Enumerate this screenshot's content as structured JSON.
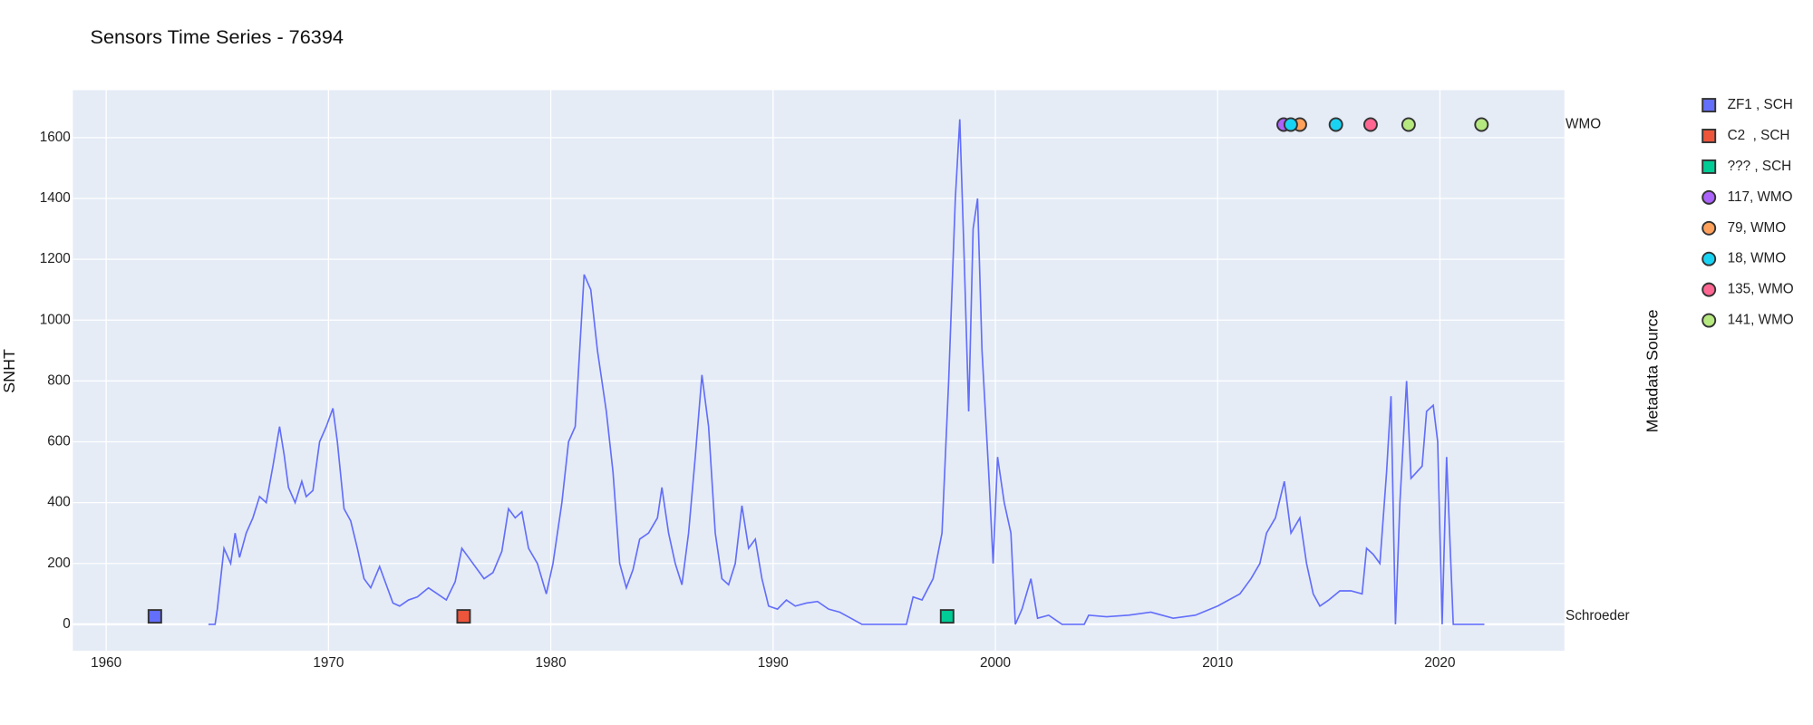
{
  "chart_data": {
    "type": "line",
    "title": "Sensors Time Series - 76394",
    "ylabel": "SNHT",
    "y2label": "Metadata Source",
    "xlim": [
      1958.5,
      2025.6
    ],
    "xticks": [
      1960,
      1970,
      1980,
      1990,
      2000,
      2010,
      2020
    ],
    "ylim": [
      -87,
      1756
    ],
    "yticks": [
      0,
      200,
      400,
      600,
      800,
      1000,
      1200,
      1400,
      1600
    ],
    "y2lim": [
      -0.07,
      1.07
    ],
    "y2categories": [
      "Schroeder",
      "WMO"
    ],
    "grid": true,
    "background": "#e5ecf6",
    "line": {
      "color": "#636efa",
      "x": [
        1964.6,
        1964.9,
        1965.0,
        1965.3,
        1965.6,
        1965.8,
        1966.0,
        1966.3,
        1966.6,
        1966.9,
        1967.2,
        1967.5,
        1967.8,
        1968.0,
        1968.2,
        1968.5,
        1968.8,
        1969.0,
        1969.3,
        1969.6,
        1969.9,
        1970.2,
        1970.4,
        1970.7,
        1971.0,
        1971.3,
        1971.6,
        1971.9,
        1972.3,
        1972.6,
        1972.9,
        1973.2,
        1973.6,
        1974.0,
        1974.5,
        1974.9,
        1975.3,
        1975.7,
        1976.0,
        1976.3,
        1976.7,
        1977.0,
        1977.4,
        1977.8,
        1978.1,
        1978.4,
        1978.7,
        1979.0,
        1979.4,
        1979.8,
        1980.1,
        1980.5,
        1980.8,
        1981.1,
        1981.5,
        1981.8,
        1982.1,
        1982.5,
        1982.8,
        1983.1,
        1983.4,
        1983.7,
        1984.0,
        1984.4,
        1984.8,
        1985.0,
        1985.3,
        1985.6,
        1985.9,
        1986.2,
        1986.5,
        1986.8,
        1987.1,
        1987.4,
        1987.7,
        1988.0,
        1988.3,
        1988.6,
        1988.9,
        1989.2,
        1989.5,
        1989.8,
        1990.2,
        1990.6,
        1991.0,
        1991.5,
        1992.0,
        1992.5,
        1993.0,
        1993.5,
        1994.0,
        1996.0,
        1996.3,
        1996.7,
        1997.2,
        1997.6,
        1997.9,
        1998.2,
        1998.4,
        1998.6,
        1998.8,
        1999.0,
        1999.2,
        1999.4,
        1999.7,
        1999.9,
        2000.1,
        2000.4,
        2000.7,
        2000.9,
        2001.2,
        2001.6,
        2001.9,
        2002.4,
        2003.0,
        2004.0,
        2004.2,
        2005.0,
        2006.0,
        2007.0,
        2008.0,
        2009.0,
        2010.0,
        2011.0,
        2011.5,
        2011.9,
        2012.2,
        2012.6,
        2013.0,
        2013.3,
        2013.7,
        2014.0,
        2014.3,
        2014.6,
        2015.0,
        2015.5,
        2016.0,
        2016.5,
        2016.7,
        2017.0,
        2017.3,
        2017.6,
        2017.8,
        2018.0,
        2018.2,
        2018.5,
        2018.7,
        2019.2,
        2019.4,
        2019.7,
        2019.9,
        2020.1,
        2020.3,
        2020.6,
        2021.0,
        2022.0
      ],
      "values": [
        0,
        0,
        50,
        250,
        200,
        300,
        220,
        300,
        350,
        420,
        400,
        520,
        650,
        560,
        450,
        400,
        470,
        420,
        440,
        600,
        650,
        710,
        600,
        380,
        340,
        250,
        150,
        120,
        190,
        130,
        70,
        60,
        80,
        90,
        120,
        100,
        80,
        140,
        250,
        220,
        180,
        150,
        170,
        240,
        380,
        350,
        370,
        250,
        200,
        100,
        200,
        400,
        600,
        650,
        1150,
        1100,
        900,
        700,
        500,
        200,
        120,
        180,
        280,
        300,
        350,
        450,
        300,
        200,
        130,
        300,
        550,
        820,
        650,
        300,
        150,
        130,
        200,
        390,
        250,
        280,
        150,
        60,
        50,
        80,
        60,
        70,
        75,
        50,
        40,
        20,
        0,
        0,
        90,
        80,
        150,
        300,
        800,
        1400,
        1660,
        1200,
        700,
        1300,
        1400,
        900,
        500,
        200,
        550,
        400,
        300,
        0,
        50,
        150,
        20,
        30,
        0,
        0,
        30,
        25,
        30,
        40,
        20,
        30,
        60,
        100,
        150,
        200,
        300,
        350,
        470,
        300,
        350,
        200,
        100,
        60,
        80,
        110,
        110,
        100,
        250,
        230,
        200,
        500,
        750,
        0,
        400,
        800,
        480,
        520,
        700,
        720,
        600,
        0,
        550,
        0,
        0,
        0
      ]
    },
    "series": [
      {
        "name": "ZF1 , SCH",
        "color": "#636efa",
        "symbol": "square",
        "axis": "y2",
        "x": [
          1962.19
        ],
        "values": [
          "Schroeder"
        ]
      },
      {
        "name": "C2  , SCH",
        "color": "#EF553B",
        "symbol": "square",
        "axis": "y2",
        "x": [
          1976.08
        ],
        "values": [
          "Schroeder"
        ]
      },
      {
        "name": "??? , SCH",
        "color": "#00cc96",
        "symbol": "square",
        "axis": "y2",
        "x": [
          1997.83
        ],
        "values": [
          "Schroeder"
        ]
      },
      {
        "name": "117, WMO",
        "color": "#ab63fa",
        "symbol": "circle",
        "axis": "y2",
        "x": [
          2012.97
        ],
        "values": [
          "WMO"
        ]
      },
      {
        "name": "79, WMO",
        "color": "#FFA15A",
        "symbol": "circle",
        "axis": "y2",
        "x": [
          2013.7
        ],
        "values": [
          "WMO"
        ]
      },
      {
        "name": "18, WMO",
        "color": "#19d3f3",
        "symbol": "circle",
        "axis": "y2",
        "x": [
          2013.29,
          2015.32
        ],
        "values": [
          "WMO",
          "WMO"
        ]
      },
      {
        "name": "135, WMO",
        "color": "#FF6692",
        "symbol": "circle",
        "axis": "y2",
        "x": [
          2016.88
        ],
        "values": [
          "WMO"
        ]
      },
      {
        "name": "141, WMO",
        "color": "#B6E880",
        "symbol": "circle",
        "axis": "y2",
        "x": [
          2018.59,
          2021.87
        ],
        "values": [
          "WMO",
          "WMO"
        ]
      }
    ]
  }
}
